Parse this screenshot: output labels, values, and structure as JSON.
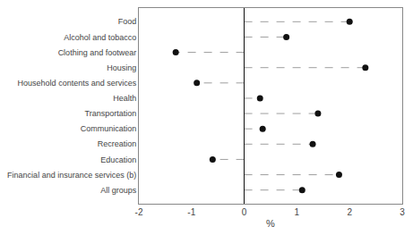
{
  "chart_data": {
    "type": "lollipop",
    "orientation": "horizontal",
    "categories": [
      "Food",
      "Alcohol and tobacco",
      "Clothing and footwear",
      "Housing",
      "Household contents and services",
      "Health",
      "Transportation",
      "Communication",
      "Recreation",
      "Education",
      "Financial and insurance services (b)",
      "All groups"
    ],
    "values": [
      2.0,
      0.8,
      -1.3,
      2.3,
      -0.9,
      0.3,
      1.4,
      0.35,
      1.3,
      -0.6,
      1.8,
      1.1
    ],
    "xlabel": "%",
    "xlim": [
      -2,
      3
    ],
    "xticks": [
      -2,
      -1,
      0,
      1,
      2,
      3
    ],
    "color": "#111111",
    "line_style": "dashed",
    "marker": "circle",
    "grid": false
  }
}
